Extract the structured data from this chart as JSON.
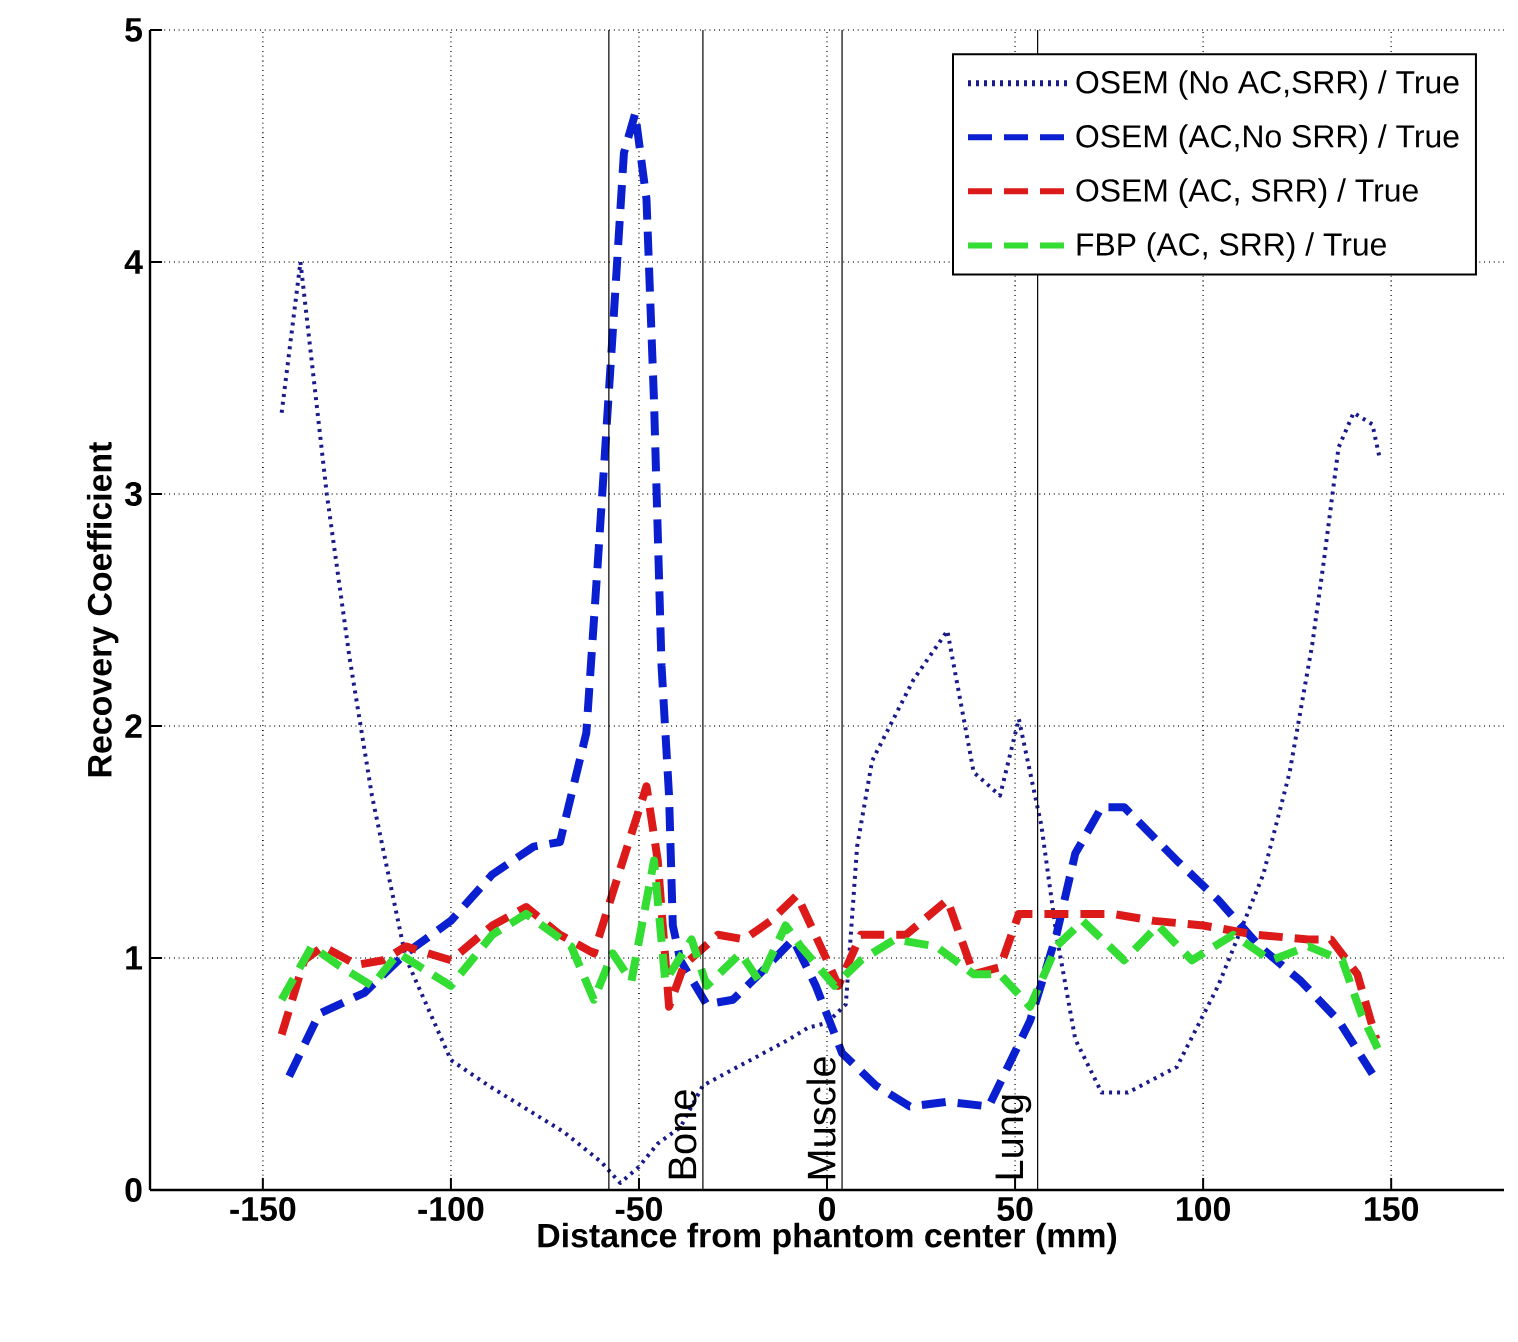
{
  "chart_data": {
    "type": "line",
    "xlabel": "Distance from phantom center (mm)",
    "ylabel": "Recovery Coefficient",
    "xlim": [
      -180,
      180
    ],
    "ylim": [
      0,
      5
    ],
    "xticks": [
      -150,
      -100,
      -50,
      0,
      50,
      100,
      150
    ],
    "yticks": [
      0,
      1,
      2,
      3,
      4,
      5
    ],
    "grid": true,
    "legend": "top right",
    "series": [
      {
        "name": "OSEM (No AC,SRR) / True",
        "color": "#1a1a8c",
        "line_style": "dotted",
        "x": [
          -145,
          -140,
          -133,
          -127,
          -121,
          -112,
          -100,
          -90,
          -80,
          -70,
          -60,
          -55,
          -50,
          -45,
          -39,
          -33,
          -25,
          -18,
          -10,
          -5,
          0,
          5,
          8,
          12,
          23,
          32,
          39,
          46,
          51,
          57,
          61,
          66,
          73,
          80,
          93,
          104,
          116,
          123,
          129,
          132,
          136,
          140,
          145,
          147
        ],
        "values": [
          3.35,
          4.0,
          3.0,
          2.3,
          1.7,
          1.0,
          0.56,
          0.45,
          0.35,
          0.25,
          0.12,
          0.03,
          0.1,
          0.2,
          0.27,
          0.45,
          0.52,
          0.58,
          0.65,
          0.7,
          0.72,
          0.8,
          1.48,
          1.85,
          2.2,
          2.41,
          1.8,
          1.7,
          2.03,
          1.57,
          1.1,
          0.65,
          0.42,
          0.42,
          0.53,
          0.88,
          1.36,
          1.8,
          2.35,
          2.7,
          3.2,
          3.35,
          3.3,
          3.15
        ]
      },
      {
        "name": "OSEM (AC,No SRR) / True",
        "color": "#0a1fd0",
        "line_style": "dashed",
        "x": [
          -143,
          -135,
          -123,
          -112,
          -100,
          -89,
          -78,
          -71,
          -64,
          -61,
          -57,
          -54,
          -51,
          -48,
          -46,
          -44,
          -42,
          -41,
          -39,
          -32,
          -25,
          -18,
          -9,
          -3,
          4,
          13,
          22,
          32,
          43,
          54,
          61,
          66,
          73,
          79,
          93,
          104,
          115,
          126,
          136,
          145
        ],
        "values": [
          0.49,
          0.76,
          0.85,
          1.02,
          1.16,
          1.36,
          1.48,
          1.5,
          1.97,
          2.69,
          3.69,
          4.47,
          4.64,
          4.27,
          3.4,
          2.26,
          1.7,
          1.14,
          0.99,
          0.8,
          0.82,
          0.93,
          1.08,
          0.88,
          0.59,
          0.45,
          0.36,
          0.38,
          0.36,
          0.73,
          1.1,
          1.45,
          1.65,
          1.65,
          1.42,
          1.25,
          1.05,
          0.9,
          0.73,
          0.5
        ]
      },
      {
        "name": "OSEM   (AC, SRR)   / True",
        "color": "#dd1a1a",
        "line_style": "dashed",
        "x": [
          -145,
          -139,
          -134,
          -125,
          -118,
          -112,
          -100,
          -89,
          -80,
          -71,
          -62,
          -57,
          -48,
          -45,
          -42,
          -38,
          -29,
          -22,
          -15,
          -8,
          0,
          3,
          9,
          21,
          32,
          39,
          46,
          51,
          61,
          76,
          87,
          100,
          114,
          128,
          134,
          141,
          146
        ],
        "values": [
          0.67,
          0.99,
          1.05,
          0.97,
          0.99,
          1.05,
          0.99,
          1.14,
          1.22,
          1.1,
          1.02,
          1.28,
          1.74,
          1.42,
          0.79,
          0.97,
          1.1,
          1.08,
          1.16,
          1.27,
          0.99,
          0.88,
          1.1,
          1.1,
          1.25,
          0.93,
          0.96,
          1.19,
          1.19,
          1.19,
          1.16,
          1.14,
          1.1,
          1.08,
          1.08,
          0.93,
          0.65
        ]
      },
      {
        "name": "FBP      (AC, SRR)   / True",
        "color": "#33dd33",
        "line_style": "dashed",
        "x": [
          -145,
          -137,
          -130,
          -121,
          -114,
          -100,
          -89,
          -80,
          -68,
          -62,
          -57,
          -52,
          -46,
          -43,
          -36,
          -32,
          -23,
          -18,
          -11,
          -7,
          2,
          9,
          18,
          29,
          39,
          46,
          54,
          61,
          68,
          79,
          88,
          97,
          108,
          118,
          128,
          137,
          142,
          147
        ],
        "values": [
          0.82,
          1.05,
          0.97,
          0.88,
          1.02,
          0.88,
          1.1,
          1.19,
          1.05,
          0.82,
          1.02,
          0.9,
          1.42,
          0.9,
          1.08,
          0.88,
          1.02,
          0.9,
          1.14,
          1.05,
          0.88,
          0.99,
          1.08,
          1.05,
          0.93,
          0.93,
          0.79,
          1.05,
          1.16,
          0.99,
          1.14,
          0.99,
          1.1,
          0.99,
          1.05,
          0.99,
          0.76,
          0.59
        ]
      }
    ],
    "ref_lines": [
      {
        "axis": "x",
        "value": -58
      },
      {
        "axis": "x",
        "value": -33,
        "label": "Bone"
      },
      {
        "axis": "x",
        "value": 4,
        "label": "Muscle"
      },
      {
        "axis": "x",
        "value": 56,
        "label": "Lung"
      }
    ]
  }
}
